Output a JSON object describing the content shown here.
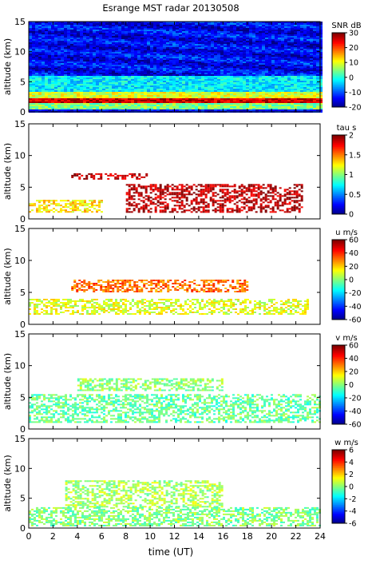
{
  "title": "Esrange MST radar 20130508",
  "chart_data": {
    "type": "heatmap",
    "title": "Esrange MST radar 20130508",
    "xlabel": "time (UT)",
    "xlim": [
      0,
      24
    ],
    "x_ticks": [
      "0",
      "2",
      "4",
      "6",
      "8",
      "10",
      "12",
      "14",
      "16",
      "18",
      "20",
      "22",
      "24"
    ],
    "grid": false,
    "panels": [
      {
        "ylabel": "altitude (km)",
        "ylim": [
          0,
          15
        ],
        "y_ticks": [
          "0",
          "5",
          "10",
          "15"
        ],
        "colorbar_label": "SNR dB",
        "colorbar_range": [
          -20,
          30
        ],
        "colorbar_ticks": [
          "30",
          "20",
          "10",
          "0",
          "-10",
          "-20"
        ],
        "colormap": "jet",
        "structure": [
          {
            "altitude_km": [
              0.5,
              1.5
            ],
            "time_ut": [
              0,
              24
            ],
            "value": 5
          },
          {
            "altitude_km": [
              1.5,
              2.3
            ],
            "time_ut": [
              0,
              24
            ],
            "value": 26
          },
          {
            "altitude_km": [
              2.3,
              3.5
            ],
            "time_ut": [
              0,
              24
            ],
            "value": 10
          },
          {
            "altitude_km": [
              3.5,
              6
            ],
            "time_ut": [
              0,
              24
            ],
            "value": -2
          },
          {
            "altitude_km": [
              6,
              15
            ],
            "time_ut": [
              0,
              24
            ],
            "value": -14
          }
        ]
      },
      {
        "ylabel": "altitude (km)",
        "ylim": [
          0,
          15
        ],
        "y_ticks": [
          "0",
          "5",
          "10",
          "15"
        ],
        "colorbar_label": "tau s",
        "colorbar_range": [
          0,
          2
        ],
        "colorbar_ticks": [
          "2",
          "1.5",
          "1",
          "0.5",
          "0"
        ],
        "colormap": "stepped-jet",
        "structure": [
          {
            "altitude_km": [
              1.2,
              3.0
            ],
            "time_ut": [
              0,
              6
            ],
            "value": 1.3
          },
          {
            "altitude_km": [
              1.2,
              5.5
            ],
            "time_ut": [
              8,
              22.5
            ],
            "value": 1.9
          },
          {
            "altitude_km": [
              6.2,
              7.2
            ],
            "time_ut": [
              3.5,
              10
            ],
            "value": 1.9
          }
        ]
      },
      {
        "ylabel": "altitude (km)",
        "ylim": [
          0,
          15
        ],
        "y_ticks": [
          "0",
          "5",
          "10",
          "15"
        ],
        "colorbar_label": "u m/s",
        "colorbar_range": [
          -60,
          60
        ],
        "colorbar_ticks": [
          "60",
          "40",
          "20",
          "0",
          "-20",
          "-40",
          "-60"
        ],
        "colormap": "jet",
        "structure": [
          {
            "altitude_km": [
              1.5,
              4.0
            ],
            "time_ut": [
              0,
              23
            ],
            "value": 12
          },
          {
            "altitude_km": [
              5.0,
              7.0
            ],
            "time_ut": [
              3.5,
              18
            ],
            "value": 32
          }
        ]
      },
      {
        "ylabel": "altitude (km)",
        "ylim": [
          0,
          15
        ],
        "y_ticks": [
          "0",
          "5",
          "10",
          "15"
        ],
        "colorbar_label": "v m/s",
        "colorbar_range": [
          -60,
          60
        ],
        "colorbar_ticks": [
          "60",
          "40",
          "20",
          "0",
          "-20",
          "-40",
          "-60"
        ],
        "colormap": "jet",
        "structure": [
          {
            "altitude_km": [
              1.0,
              5.5
            ],
            "time_ut": [
              0,
              24
            ],
            "value": -3
          },
          {
            "altitude_km": [
              6.0,
              8.0
            ],
            "time_ut": [
              4,
              16
            ],
            "value": 2
          }
        ]
      },
      {
        "ylabel": "altitude (km)",
        "ylim": [
          0,
          15
        ],
        "y_ticks": [
          "0",
          "5",
          "10",
          "15"
        ],
        "colorbar_label": "w m/s",
        "colorbar_range": [
          -6,
          6
        ],
        "colorbar_ticks": [
          "6",
          "4",
          "2",
          "0",
          "-2",
          "-4",
          "-6"
        ],
        "colormap": "stepped-jet",
        "structure": [
          {
            "altitude_km": [
              0.3,
              3.5
            ],
            "time_ut": [
              0,
              24
            ],
            "value": 0
          },
          {
            "altitude_km": [
              3.5,
              8.0
            ],
            "time_ut": [
              3,
              16
            ],
            "value": 0.5
          }
        ]
      }
    ]
  }
}
